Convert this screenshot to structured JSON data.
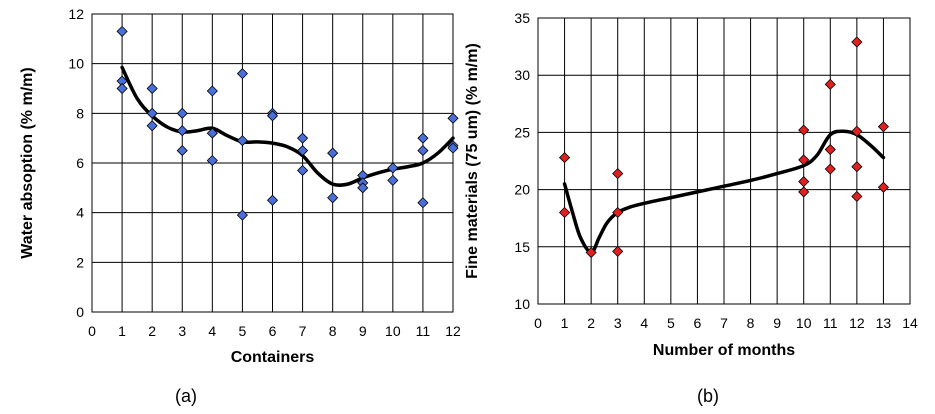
{
  "chart_data": [
    {
      "type": "scatter",
      "panel_label": "(a)",
      "xlabel": "Containers",
      "ylabel": "Water absoption (% m/m)",
      "xlim": [
        0,
        12
      ],
      "ylim": [
        0,
        12
      ],
      "xticks": [
        "0",
        "1",
        "2",
        "3",
        "4",
        "5",
        "6",
        "7",
        "8",
        "9",
        "10",
        "11",
        "12"
      ],
      "yticks": [
        "0",
        "2",
        "4",
        "6",
        "8",
        "10",
        "12"
      ],
      "grid": true,
      "marker_color": "#4a6fd8",
      "curve_color": "#000000",
      "points": [
        {
          "x": 1,
          "y": 11.3
        },
        {
          "x": 1,
          "y": 9.3
        },
        {
          "x": 1,
          "y": 9.0
        },
        {
          "x": 2,
          "y": 9.0
        },
        {
          "x": 2,
          "y": 8.0
        },
        {
          "x": 2,
          "y": 7.5
        },
        {
          "x": 3,
          "y": 8.0
        },
        {
          "x": 3,
          "y": 7.3
        },
        {
          "x": 3,
          "y": 6.5
        },
        {
          "x": 4,
          "y": 8.9
        },
        {
          "x": 4,
          "y": 7.2
        },
        {
          "x": 4,
          "y": 6.1
        },
        {
          "x": 5,
          "y": 9.6
        },
        {
          "x": 5,
          "y": 6.9
        },
        {
          "x": 5,
          "y": 3.9
        },
        {
          "x": 6,
          "y": 8.0
        },
        {
          "x": 6,
          "y": 7.9
        },
        {
          "x": 6,
          "y": 4.5
        },
        {
          "x": 7,
          "y": 7.0
        },
        {
          "x": 7,
          "y": 6.5
        },
        {
          "x": 7,
          "y": 5.7
        },
        {
          "x": 8,
          "y": 6.4
        },
        {
          "x": 8,
          "y": 4.6
        },
        {
          "x": 9,
          "y": 5.5
        },
        {
          "x": 9,
          "y": 5.2
        },
        {
          "x": 9,
          "y": 5.0
        },
        {
          "x": 10,
          "y": 5.8
        },
        {
          "x": 10,
          "y": 5.3
        },
        {
          "x": 11,
          "y": 7.0
        },
        {
          "x": 11,
          "y": 6.5
        },
        {
          "x": 11,
          "y": 4.4
        },
        {
          "x": 12,
          "y": 7.8
        },
        {
          "x": 12,
          "y": 6.7
        },
        {
          "x": 12,
          "y": 6.6
        }
      ],
      "trend": [
        [
          1,
          9.85
        ],
        [
          1.5,
          8.6
        ],
        [
          2,
          7.9
        ],
        [
          2.5,
          7.45
        ],
        [
          3,
          7.25
        ],
        [
          3.5,
          7.3
        ],
        [
          4,
          7.4
        ],
        [
          4.5,
          7.1
        ],
        [
          5,
          6.85
        ],
        [
          5.5,
          6.85
        ],
        [
          6,
          6.8
        ],
        [
          6.5,
          6.65
        ],
        [
          7,
          6.3
        ],
        [
          7.5,
          5.6
        ],
        [
          8,
          5.15
        ],
        [
          8.5,
          5.15
        ],
        [
          9,
          5.4
        ],
        [
          9.5,
          5.6
        ],
        [
          10,
          5.75
        ],
        [
          10.5,
          5.85
        ],
        [
          11,
          6.0
        ],
        [
          11.5,
          6.4
        ],
        [
          12,
          7.0
        ]
      ]
    },
    {
      "type": "scatter",
      "panel_label": "(b)",
      "xlabel": "Number of months",
      "ylabel": "Fine materials (75 um) (% m/m)",
      "xlim": [
        0,
        14
      ],
      "ylim": [
        10,
        35
      ],
      "xticks": [
        "0",
        "1",
        "2",
        "3",
        "4",
        "5",
        "6",
        "7",
        "8",
        "9",
        "10",
        "11",
        "12",
        "13",
        "14"
      ],
      "yticks": [
        "10",
        "15",
        "20",
        "25",
        "30",
        "35"
      ],
      "grid": true,
      "marker_color": "#e02020",
      "curve_color": "#000000",
      "points": [
        {
          "x": 1,
          "y": 22.8
        },
        {
          "x": 1,
          "y": 18.0
        },
        {
          "x": 2,
          "y": 14.5
        },
        {
          "x": 3,
          "y": 21.4
        },
        {
          "x": 3,
          "y": 18.0
        },
        {
          "x": 3,
          "y": 14.6
        },
        {
          "x": 10,
          "y": 25.2
        },
        {
          "x": 10,
          "y": 22.6
        },
        {
          "x": 10,
          "y": 20.7
        },
        {
          "x": 10,
          "y": 19.8
        },
        {
          "x": 11,
          "y": 29.2
        },
        {
          "x": 11,
          "y": 23.5
        },
        {
          "x": 11,
          "y": 21.8
        },
        {
          "x": 12,
          "y": 32.9
        },
        {
          "x": 12,
          "y": 25.1
        },
        {
          "x": 12,
          "y": 22.0
        },
        {
          "x": 12,
          "y": 19.4
        },
        {
          "x": 13,
          "y": 25.5
        },
        {
          "x": 13,
          "y": 20.2
        }
      ],
      "trend": [
        [
          1,
          20.5
        ],
        [
          1.3,
          18.0
        ],
        [
          1.6,
          15.8
        ],
        [
          2,
          14.5
        ],
        [
          2.3,
          15.8
        ],
        [
          2.6,
          17.1
        ],
        [
          3,
          18.0
        ],
        [
          3.5,
          18.5
        ],
        [
          4,
          18.8
        ],
        [
          5,
          19.3
        ],
        [
          6,
          19.8
        ],
        [
          7,
          20.3
        ],
        [
          8,
          20.8
        ],
        [
          9,
          21.4
        ],
        [
          10,
          22.1
        ],
        [
          10.5,
          23.0
        ],
        [
          11,
          24.8
        ],
        [
          11.5,
          25.1
        ],
        [
          12,
          24.8
        ],
        [
          12.5,
          23.9
        ],
        [
          13,
          22.8
        ]
      ]
    }
  ]
}
